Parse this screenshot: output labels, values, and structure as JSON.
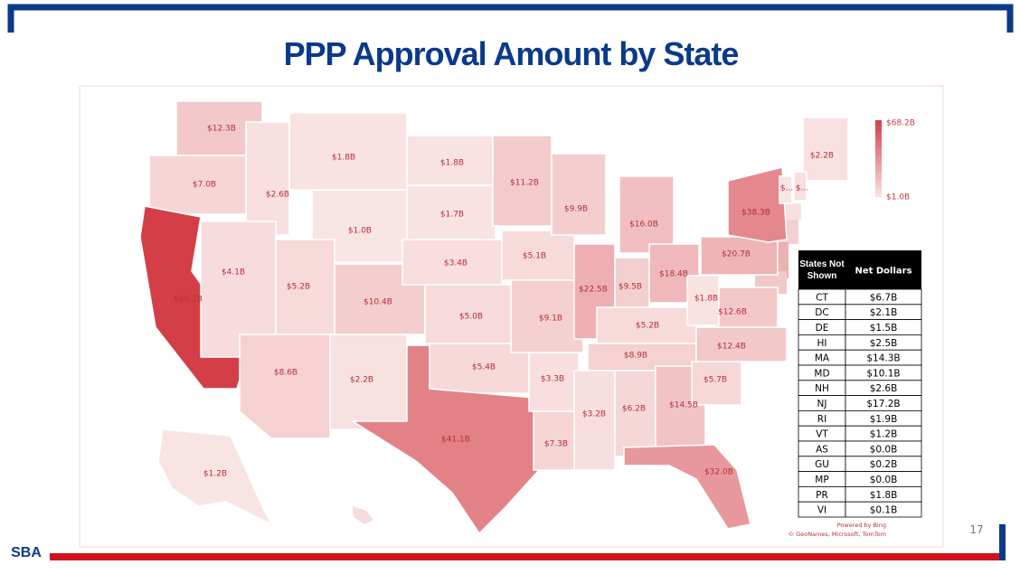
{
  "title": "PPP Approval Amount by State",
  "map": {
    "states": [
      {
        "label": "$12.3B",
        "value": 12.3
      },
      {
        "label": "$7.0B",
        "value": 7.0
      },
      {
        "label": "$68.2B",
        "value": 68.2
      },
      {
        "label": "$2.6B",
        "value": 2.6
      },
      {
        "label": "$1.8B",
        "value": 1.8
      },
      {
        "label": "$1.0B",
        "value": 1.0
      },
      {
        "label": "$4.1B",
        "value": 4.1
      },
      {
        "label": "$5.2B",
        "value": 5.2
      },
      {
        "label": "$10.4B",
        "value": 10.4
      },
      {
        "label": "$8.6B",
        "value": 8.6
      },
      {
        "label": "$2.2B",
        "value": 2.2
      },
      {
        "label": "$1.8B",
        "value": 1.8
      },
      {
        "label": "$1.7B",
        "value": 1.7
      },
      {
        "label": "$3.4B",
        "value": 3.4
      },
      {
        "label": "$5.0B",
        "value": 5.0
      },
      {
        "label": "$5.4B",
        "value": 5.4
      },
      {
        "label": "$41.1B",
        "value": 41.1
      },
      {
        "label": "$11.2B",
        "value": 11.2
      },
      {
        "label": "$5.1B",
        "value": 5.1
      },
      {
        "label": "$9.1B",
        "value": 9.1
      },
      {
        "label": "$3.3B",
        "value": 3.3
      },
      {
        "label": "$7.3B",
        "value": 7.3
      },
      {
        "label": "$9.9B",
        "value": 9.9
      },
      {
        "label": "$22.5B",
        "value": 22.5
      },
      {
        "label": "$16.0B",
        "value": 16.0
      },
      {
        "label": "$9.5B",
        "value": 9.5
      },
      {
        "label": "$18.4B",
        "value": 18.4
      },
      {
        "label": "$5.2B",
        "value": 5.2
      },
      {
        "label": "$8.9B",
        "value": 8.9
      },
      {
        "label": "$3.2B",
        "value": 3.2
      },
      {
        "label": "$6.2B",
        "value": 6.2
      },
      {
        "label": "$14.5B",
        "value": 14.5
      },
      {
        "label": "$32.0B",
        "value": 32.0
      },
      {
        "label": "$5.7B",
        "value": 5.7
      },
      {
        "label": "$12.4B",
        "value": 12.4
      },
      {
        "label": "$12.6B",
        "value": 12.6
      },
      {
        "label": "$1.8B",
        "value": 1.8
      },
      {
        "label": "$20.7B",
        "value": 20.7
      },
      {
        "label": "$38.3B",
        "value": 38.3
      },
      {
        "label": "$2.2B",
        "value": 2.2
      },
      {
        "label": "$...",
        "value": 1.2
      },
      {
        "label": "$...",
        "value": 2.6
      },
      {
        "label": "$1.2B",
        "value": 1.2
      }
    ],
    "legend": {
      "max": {
        "label": "$68.2B",
        "value": 68.2
      },
      "min": {
        "label": "$1.0B",
        "value": 1.0
      }
    },
    "credits": [
      "Powered by Bing",
      "© GeoNames, Microsoft, TomTom"
    ]
  },
  "table": {
    "header": [
      "States Not Shown",
      "Net Dollars"
    ],
    "rows": [
      [
        "CT",
        "$6.7B"
      ],
      [
        "DC",
        "$2.1B"
      ],
      [
        "DE",
        "$1.5B"
      ],
      [
        "HI",
        "$2.5B"
      ],
      [
        "MA",
        "$14.3B"
      ],
      [
        "MD",
        "$10.1B"
      ],
      [
        "NH",
        "$2.6B"
      ],
      [
        "NJ",
        "$17.2B"
      ],
      [
        "RI",
        "$1.9B"
      ],
      [
        "VT",
        "$1.2B"
      ],
      [
        "AS",
        "$0.0B"
      ],
      [
        "GU",
        "$0.2B"
      ],
      [
        "MP",
        "$0.0B"
      ],
      [
        "PR",
        "$1.8B"
      ],
      [
        "VI",
        "$0.1B"
      ]
    ]
  },
  "page_number": "17",
  "logo": "SBA"
}
